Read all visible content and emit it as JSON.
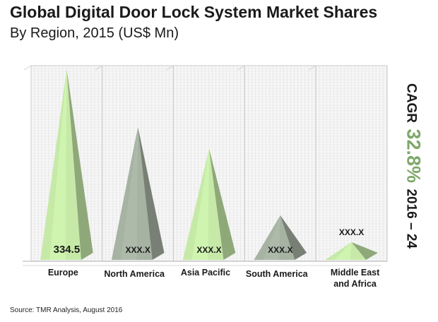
{
  "header": {
    "title": "Global Digital Door Lock System  Market Shares",
    "subtitle": "By Region, 2015 (US$ Mn)"
  },
  "source": "Source: TMR Analysis, August 2016",
  "cagr": {
    "label": "CAGR",
    "value": "32.8%",
    "period": "2016 – 24"
  },
  "colors": {
    "green": "#c6e9a8",
    "gray": "#a6b2a2",
    "cagr_accent": "#7ea86a",
    "grid": "#c9c9c9"
  },
  "chart_data": {
    "type": "bar",
    "style": "3d-pyramid",
    "categories": [
      "Europe",
      "North America",
      "Asia Pacific",
      "South America",
      "Middle East and Africa"
    ],
    "category_lines": [
      [
        "Europe"
      ],
      [
        "North America"
      ],
      [
        "Asia Pacific"
      ],
      [
        "South America"
      ],
      [
        "Middle East",
        "and Africa"
      ]
    ],
    "values": [
      334.5,
      233,
      195,
      78,
      31
    ],
    "data_labels": [
      "334.5",
      "XXX.X",
      "XXX.X",
      "XXX.X",
      "XXX.X"
    ],
    "bar_colors": [
      "#c6e9a8",
      "#a6b2a2",
      "#c6e9a8",
      "#a6b2a2",
      "#c6e9a8"
    ],
    "grid": true
  }
}
